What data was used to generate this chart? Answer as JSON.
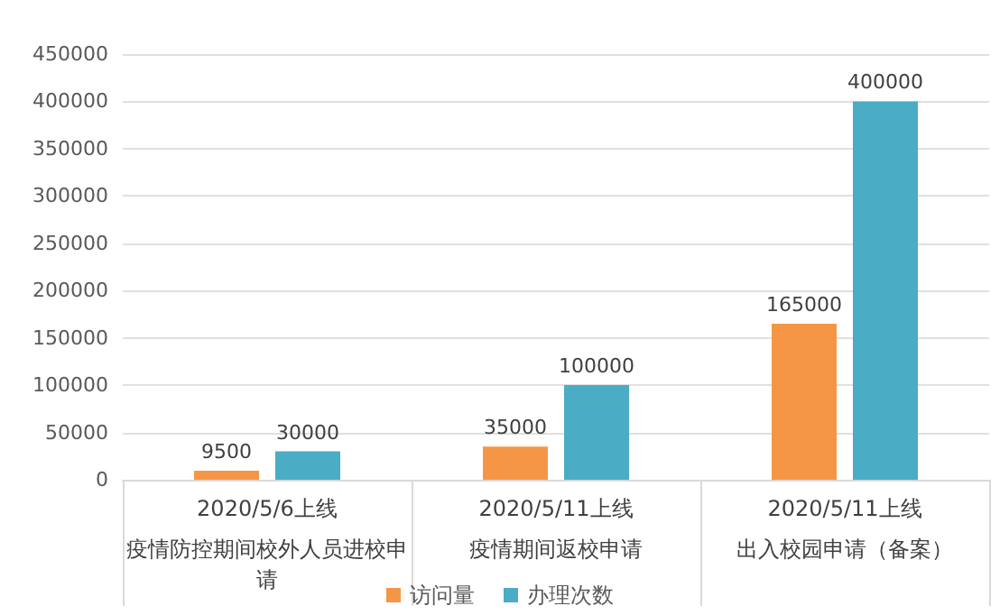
{
  "chart_data": {
    "type": "bar",
    "categories": [
      "疫情防控期间校外人员进校申请",
      "疫情期间返校申请",
      "出入校园申请（备案）"
    ],
    "annotations": [
      "2020/5/6上线",
      "2020/5/11上线",
      "2020/5/11上线"
    ],
    "series": [
      {
        "name": "访问量",
        "color": "#f59646",
        "values": [
          9500,
          35000,
          165000
        ]
      },
      {
        "name": "办理次数",
        "color": "#4bacc6",
        "values": [
          30000,
          100000,
          400000
        ]
      }
    ],
    "ylim": [
      0,
      450000
    ],
    "yticks": [
      0,
      50000,
      100000,
      150000,
      200000,
      250000,
      300000,
      350000,
      400000,
      450000
    ],
    "grid": "y",
    "legend": "bottom",
    "data_labels": true
  }
}
